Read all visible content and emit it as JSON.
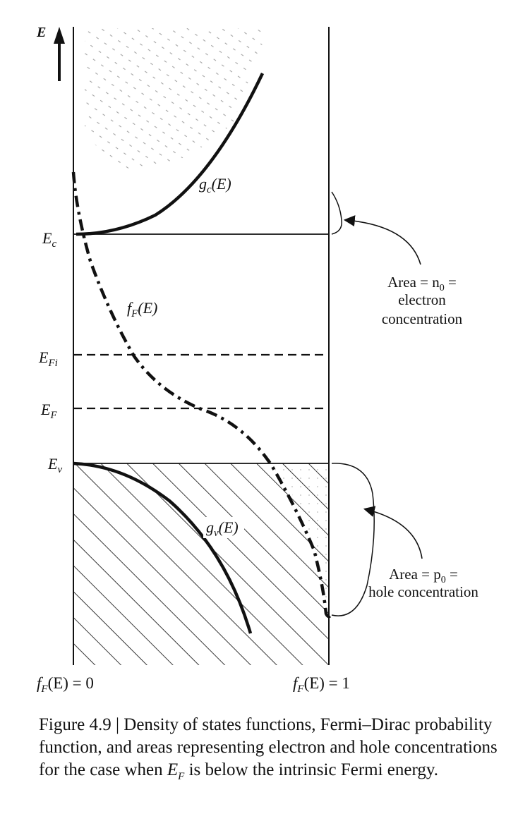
{
  "diagram": {
    "axis_label": "E",
    "levels": {
      "ec": "E",
      "ec_sub": "c",
      "efi": "E",
      "efi_sub": "Fi",
      "ef": "E",
      "ef_sub": "F",
      "ev": "E",
      "ev_sub": "v"
    },
    "curves": {
      "gc": "g",
      "gc_sub": "c",
      "gc_arg": "(E)",
      "ff": "f",
      "ff_sub": "F",
      "ff_arg": "(E)",
      "gv": "g",
      "gv_sub": "v",
      "gv_arg": "(E)"
    },
    "electron_area": {
      "line1": "Area = n",
      "line1_sub": "0",
      "line1_end": " =",
      "line2": "electron",
      "line3": "concentration"
    },
    "hole_area": {
      "line1": "Area = p",
      "line1_sub": "0",
      "line1_end": " =",
      "line2": "hole concentration"
    },
    "bottom_left": {
      "f": "f",
      "sub": "F",
      "rest": "(E) = 0"
    },
    "bottom_right": {
      "f": "f",
      "sub": "F",
      "rest": "(E) = 1"
    }
  },
  "caption": {
    "prefix": "Figure 4.9 | Density of states functions, Fermi–Dirac probability function, and areas representing electron and hole concentrations for the case when ",
    "symbol": "E",
    "symbol_sub": "F",
    "suffix": " is below the intrinsic Fermi energy."
  }
}
